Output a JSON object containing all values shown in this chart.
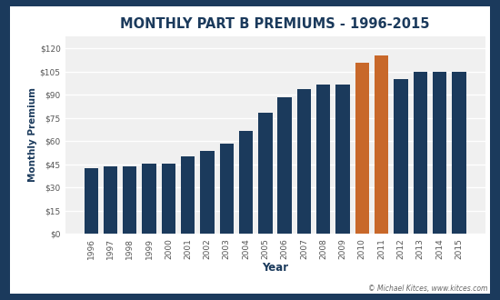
{
  "years": [
    1996,
    1997,
    1998,
    1999,
    2000,
    2001,
    2002,
    2003,
    2004,
    2005,
    2006,
    2007,
    2008,
    2009,
    2010,
    2011,
    2012,
    2013,
    2014,
    2015
  ],
  "premiums": [
    42.5,
    43.8,
    43.8,
    45.5,
    45.5,
    50.0,
    54.0,
    58.7,
    66.6,
    78.2,
    88.5,
    93.5,
    96.4,
    96.4,
    110.5,
    115.4,
    99.9,
    104.9,
    104.9,
    104.9
  ],
  "bar_colors": [
    "#1b3a5c",
    "#1b3a5c",
    "#1b3a5c",
    "#1b3a5c",
    "#1b3a5c",
    "#1b3a5c",
    "#1b3a5c",
    "#1b3a5c",
    "#1b3a5c",
    "#1b3a5c",
    "#1b3a5c",
    "#1b3a5c",
    "#1b3a5c",
    "#1b3a5c",
    "#c8682a",
    "#c8682a",
    "#1b3a5c",
    "#1b3a5c",
    "#1b3a5c",
    "#1b3a5c"
  ],
  "title": "MONTHLY PART B PREMIUMS - 1996-2015",
  "xlabel": "Year",
  "ylabel": "Monthly Premium",
  "yticks": [
    0,
    15,
    30,
    45,
    60,
    75,
    90,
    105,
    120
  ],
  "ylim": [
    0,
    128
  ],
  "background_color": "#ffffff",
  "plot_bg_color": "#f0f0f0",
  "grid_color": "#ffffff",
  "border_color": "#1b3a5c",
  "title_color": "#1b3a5c",
  "axis_label_color": "#1b3a5c",
  "tick_color": "#555555",
  "footnote": "© Michael Kitces, www.kitces.com",
  "footnote_color": "#666666",
  "title_fontsize": 10.5,
  "xlabel_fontsize": 8.5,
  "ylabel_fontsize": 7.5,
  "tick_fontsize": 6.5,
  "footnote_fontsize": 5.5
}
